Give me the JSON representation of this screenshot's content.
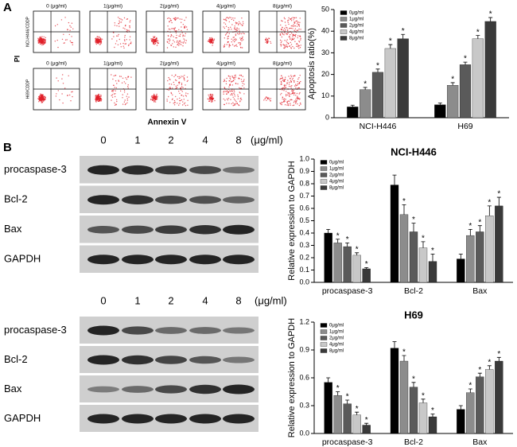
{
  "flow": {
    "label": "A",
    "y_label": "PI",
    "x_label": "Annexin V",
    "rows": [
      "NCI-H446/CDDP",
      "H69/CDDP"
    ],
    "columns": [
      "0 (μg/ml)",
      "1(μg/ml)",
      "2(μg/ml)",
      "4(μg/ml)",
      "8(μg/ml)"
    ]
  },
  "blots": {
    "label": "B",
    "panels": [
      {
        "doses": [
          "0",
          "1",
          "2",
          "4",
          "8"
        ],
        "unit": "(μg/ml)",
        "proteins": [
          "procaspase-3",
          "Bcl-2",
          "Bax",
          "GAPDH"
        ]
      },
      {
        "doses": [
          "0",
          "1",
          "2",
          "4",
          "8"
        ],
        "unit": "(μg/ml)",
        "proteins": [
          "procaspase-3",
          "Bcl-2",
          "Bax",
          "GAPDH"
        ]
      }
    ]
  },
  "chart_data": [
    {
      "type": "bar",
      "y_label": "Apoptosis ratio(%)",
      "categories": [
        "NCI-H446",
        "H69"
      ],
      "ylim": [
        0,
        50
      ],
      "yticks": [
        0,
        10,
        20,
        30,
        40,
        50
      ],
      "legend": "upper-left",
      "series": [
        {
          "name": "0μg/ml",
          "color": "#000000",
          "values": [
            5,
            6
          ],
          "errors": [
            0.8,
            0.8
          ]
        },
        {
          "name": "1μg/ml",
          "color": "#8c8c8c",
          "values": [
            13,
            15
          ],
          "errors": [
            1,
            1.2
          ],
          "annotations": [
            "*",
            "*"
          ]
        },
        {
          "name": "2μg/ml",
          "color": "#5a5a5a",
          "values": [
            21,
            24.5
          ],
          "errors": [
            1.5,
            1.2
          ],
          "annotations": [
            "*",
            "*"
          ]
        },
        {
          "name": "4μg/ml",
          "color": "#c8c8c8",
          "values": [
            32,
            36.5
          ],
          "errors": [
            1.8,
            1.5
          ],
          "annotations": [
            "*",
            "*"
          ]
        },
        {
          "name": "8μg/ml",
          "color": "#3a3a3a",
          "values": [
            36.5,
            44.5
          ],
          "errors": [
            2,
            1.8
          ],
          "annotations": [
            "*",
            "*"
          ]
        }
      ]
    },
    {
      "type": "bar",
      "title": "NCI-H446",
      "y_label": "Relative  expression to GAPDH",
      "categories": [
        "procaspase-3",
        "Bcl-2",
        "Bax"
      ],
      "ylim": [
        0,
        1.0
      ],
      "yticks": [
        {
          "value": 0,
          "label": "0.0"
        },
        0.1,
        0.2,
        0.3,
        0.4,
        0.5,
        0.6,
        0.7,
        0.8,
        0.9,
        {
          "value": 1,
          "label": "1.0"
        }
      ],
      "legend": "upper-left",
      "series": [
        {
          "name": "0μg/ml",
          "color": "#000000",
          "values": [
            0.4,
            0.79,
            0.19
          ],
          "errors": [
            0.03,
            0.08,
            0.04
          ]
        },
        {
          "name": "1μg/ml",
          "color": "#8c8c8c",
          "values": [
            0.32,
            0.55,
            0.38
          ],
          "errors": [
            0.03,
            0.08,
            0.05
          ],
          "annotations": [
            "*",
            "*",
            "*"
          ]
        },
        {
          "name": "2μg/ml",
          "color": "#5a5a5a",
          "values": [
            0.29,
            0.41,
            0.41
          ],
          "errors": [
            0.03,
            0.07,
            0.05
          ],
          "annotations": [
            "*",
            "*",
            "*"
          ]
        },
        {
          "name": "4μg/ml",
          "color": "#c8c8c8",
          "values": [
            0.22,
            0.28,
            0.54
          ],
          "errors": [
            0.02,
            0.05,
            0.08
          ],
          "annotations": [
            "*",
            "*",
            "*"
          ]
        },
        {
          "name": "8μg/ml",
          "color": "#3a3a3a",
          "values": [
            0.11,
            0.17,
            0.62
          ],
          "errors": [
            0.01,
            0.06,
            0.07
          ],
          "annotations": [
            "*",
            "*",
            "*"
          ]
        }
      ]
    },
    {
      "type": "bar",
      "title": "H69",
      "y_label": "Relative  expression to GAPDH",
      "categories": [
        "procaspase-3",
        "Bcl-2",
        "Bax"
      ],
      "ylim": [
        0,
        1.2
      ],
      "yticks": [
        {
          "value": 0,
          "label": "0.0"
        },
        0.3,
        0.6,
        0.9,
        1.2
      ],
      "legend": "upper-left",
      "series": [
        {
          "name": "0μg/ml",
          "color": "#000000",
          "values": [
            0.55,
            0.92,
            0.26
          ],
          "errors": [
            0.05,
            0.07,
            0.04
          ]
        },
        {
          "name": "1μg/ml",
          "color": "#8c8c8c",
          "values": [
            0.41,
            0.78,
            0.44
          ],
          "errors": [
            0.04,
            0.06,
            0.04
          ],
          "annotations": [
            "*",
            "*",
            "*"
          ]
        },
        {
          "name": "2μg/ml",
          "color": "#5a5a5a",
          "values": [
            0.32,
            0.5,
            0.61
          ],
          "errors": [
            0.04,
            0.05,
            0.04
          ],
          "annotations": [
            "*",
            "*",
            "*"
          ]
        },
        {
          "name": "4μg/ml",
          "color": "#c8c8c8",
          "values": [
            0.2,
            0.33,
            0.69
          ],
          "errors": [
            0.03,
            0.04,
            0.04
          ],
          "annotations": [
            "*",
            "*",
            "*"
          ]
        },
        {
          "name": "8μg/ml",
          "color": "#3a3a3a",
          "values": [
            0.09,
            0.18,
            0.78
          ],
          "errors": [
            0.02,
            0.03,
            0.04
          ],
          "annotations": [
            "*",
            "*",
            "*"
          ]
        }
      ]
    }
  ]
}
